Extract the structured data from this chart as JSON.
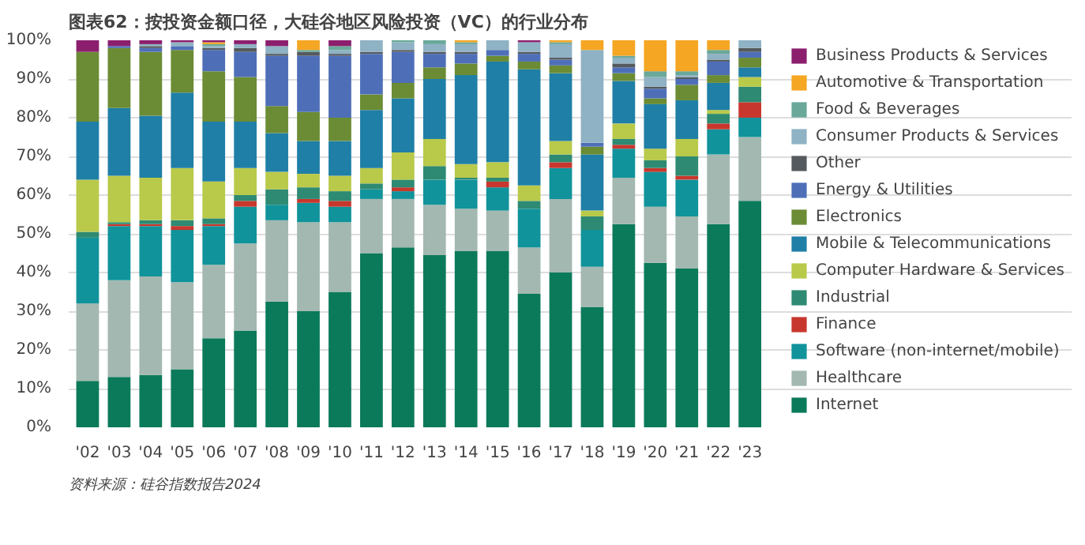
{
  "chart_data": {
    "type": "bar",
    "stacked": true,
    "title": "图表62：按投资金额口径，大硅谷地区风险投资（VC）的行业分布",
    "annotations": [
      "资料来源：硅谷指数报告2024"
    ],
    "categories": [
      "'02",
      "'03",
      "'04",
      "'05",
      "'06",
      "'07",
      "'08",
      "'09",
      "'10",
      "'11",
      "'12",
      "'13",
      "'14",
      "'15",
      "'16",
      "'17",
      "'18",
      "'19",
      "'20",
      "'21",
      "'22",
      "'23"
    ],
    "ylim": [
      0,
      100
    ],
    "yticks": [
      {
        "value": 0,
        "label": "0%"
      },
      {
        "value": 10,
        "label": "10%"
      },
      {
        "value": 20,
        "label": "20%"
      },
      {
        "value": 30,
        "label": "30%"
      },
      {
        "value": 40,
        "label": "40%"
      },
      {
        "value": 50,
        "label": "50%"
      },
      {
        "value": 60,
        "label": "60%"
      },
      {
        "value": 70,
        "label": "70%"
      },
      {
        "value": 80,
        "label": "80%"
      },
      {
        "value": 90,
        "label": "90%"
      },
      {
        "value": 100,
        "label": "100%"
      }
    ],
    "grid": "y",
    "legend": "right",
    "series": [
      {
        "name": "Internet",
        "color": "#0b7a5b",
        "values": [
          12,
          13,
          13.5,
          15,
          23,
          25,
          32.5,
          30,
          35,
          45,
          46.5,
          44.5,
          45.5,
          45.5,
          34.5,
          40,
          31,
          52.5,
          42.5,
          41,
          52.5,
          58.5
        ]
      },
      {
        "name": "Healthcare",
        "color": "#a3b8b0",
        "values": [
          20,
          25,
          25.5,
          22.5,
          19,
          22.5,
          21,
          23,
          18,
          14,
          12.5,
          13,
          11,
          10.5,
          12,
          19,
          10.5,
          12,
          14.5,
          13.5,
          18,
          16.5
        ]
      },
      {
        "name": "Software (non-internet/mobile)",
        "color": "#10939b",
        "values": [
          17,
          14,
          13,
          13.5,
          10,
          9.5,
          4,
          5,
          4,
          2.5,
          2,
          6.5,
          7.5,
          6,
          10,
          8,
          9.5,
          7.5,
          9,
          9.5,
          6.5,
          5
        ]
      },
      {
        "name": "Finance",
        "color": "#c8372d",
        "values": [
          0,
          0.5,
          0.5,
          1,
          0.5,
          1.5,
          0,
          1,
          1.5,
          0,
          1,
          0,
          0,
          1.5,
          0,
          1.5,
          0,
          1,
          1,
          1,
          1.5,
          4
        ]
      },
      {
        "name": "Industrial",
        "color": "#2e8a72",
        "values": [
          1.5,
          0.5,
          1,
          1.5,
          1.5,
          1.5,
          4,
          3,
          2.5,
          1.5,
          2,
          3.5,
          0.5,
          1,
          2,
          2,
          3.5,
          1.5,
          2,
          5,
          2.5,
          4
        ]
      },
      {
        "name": "Computer Hardware & Services",
        "color": "#b9c94a",
        "values": [
          13.5,
          12,
          11,
          13.5,
          9.5,
          7,
          4.5,
          3.5,
          4,
          4,
          7,
          7,
          3.5,
          4,
          4,
          3.5,
          1.5,
          4,
          3,
          4.5,
          1,
          2.5
        ]
      },
      {
        "name": "Mobile & Telecommunications",
        "color": "#1f7fa6",
        "values": [
          15,
          17.5,
          16,
          19.5,
          15.5,
          12,
          10,
          8.5,
          9,
          15,
          14,
          15.5,
          23,
          26,
          30,
          17.5,
          14.5,
          11,
          11.5,
          10,
          7,
          2.5
        ]
      },
      {
        "name": "Electronics",
        "color": "#6b8c34",
        "values": [
          18,
          15.5,
          16.5,
          11,
          13,
          11.5,
          7,
          7.5,
          6,
          4,
          4,
          3,
          3,
          1.5,
          2,
          2,
          2,
          2,
          1.5,
          4,
          2,
          2.5
        ]
      },
      {
        "name": "Energy & Utilities",
        "color": "#4e6fb8",
        "values": [
          0,
          0.5,
          1,
          1,
          5.5,
          6.5,
          13,
          14.5,
          16,
          10.5,
          8,
          3.5,
          2.5,
          1.5,
          2,
          1.5,
          1,
          1.5,
          2.5,
          1.5,
          3.5,
          1.5
        ]
      },
      {
        "name": "Other",
        "color": "#555a5e",
        "values": [
          0,
          0,
          0.5,
          0,
          0.5,
          1,
          0.5,
          1,
          0.5,
          0.5,
          0.5,
          0.5,
          0.5,
          0,
          0.5,
          0.5,
          0,
          1,
          0.5,
          0.5,
          0.5,
          1
        ]
      },
      {
        "name": "Consumer Products & Services",
        "color": "#8fb2c4",
        "values": [
          0,
          0,
          0.5,
          1,
          0.5,
          1,
          2,
          0,
          1,
          3,
          2,
          2,
          2,
          2.5,
          2.5,
          3.5,
          24,
          1.5,
          2.5,
          0.5,
          1.5,
          2
        ]
      },
      {
        "name": "Food & Beverages",
        "color": "#6aa89a",
        "values": [
          0,
          0,
          0,
          0,
          0.5,
          0,
          0,
          0.5,
          1,
          0,
          0.5,
          1,
          0.5,
          0,
          0,
          0.5,
          0,
          0.5,
          1.5,
          1,
          1,
          0
        ]
      },
      {
        "name": "Automotive & Transportation",
        "color": "#f5a623",
        "values": [
          0,
          0,
          0,
          0,
          0.5,
          0,
          0,
          2.5,
          0,
          0,
          0,
          0,
          0.5,
          0,
          0,
          0.5,
          2.5,
          4,
          8,
          8,
          2.5,
          0
        ]
      },
      {
        "name": "Business Products & Services",
        "color": "#8b1f6e",
        "values": [
          3,
          1.5,
          1,
          0.5,
          0.5,
          1,
          1.5,
          0,
          1.5,
          0,
          0,
          0,
          0,
          0,
          0.5,
          0,
          0,
          0,
          0,
          0,
          0,
          0
        ]
      }
    ]
  }
}
